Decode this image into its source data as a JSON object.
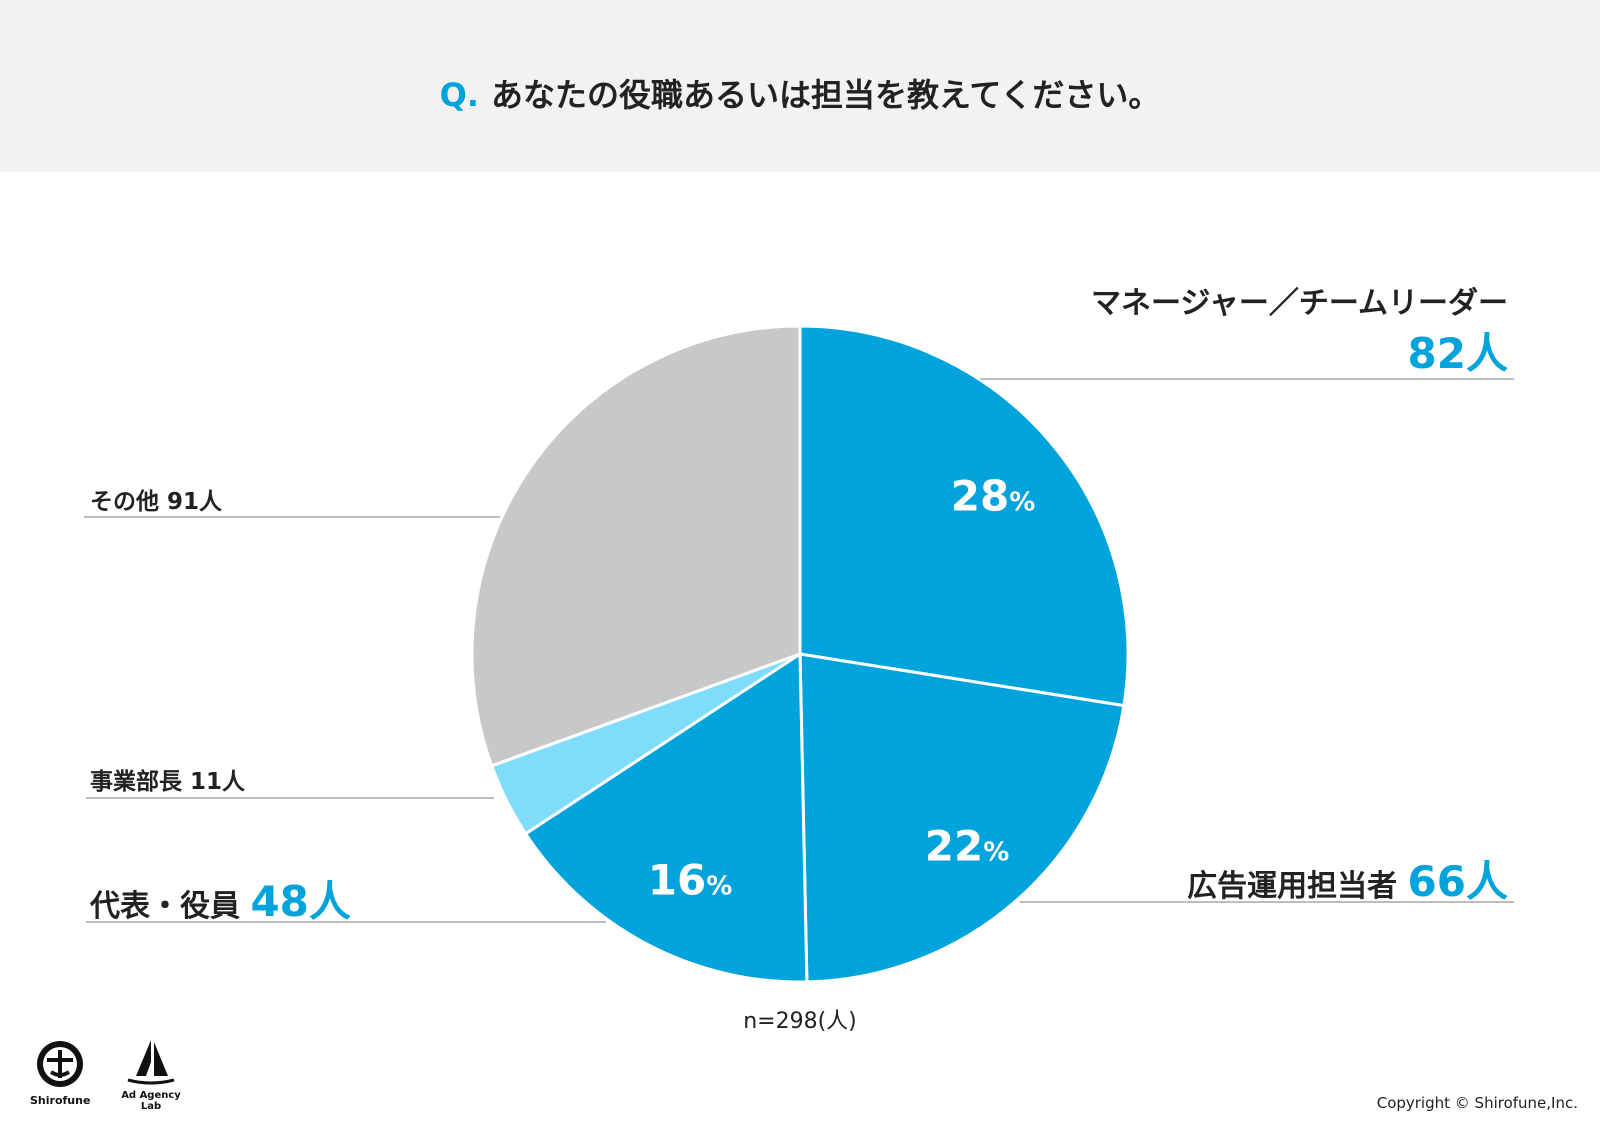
{
  "header": {
    "q_prefix": "Q.",
    "question": "あなたの役職あるいは担当を教えてください。"
  },
  "chart_data": {
    "type": "pie",
    "n_label": "n=298(人)",
    "slices": [
      {
        "label": "マネージャー／チームリーダー",
        "value": 82,
        "unit": "人",
        "percent": "28",
        "color": "#00a3dc"
      },
      {
        "label": "広告運用担当者",
        "value": 66,
        "unit": "人",
        "percent": "22",
        "color": "#00a3dc"
      },
      {
        "label": "代表・役員",
        "value": 48,
        "unit": "人",
        "percent": "16",
        "color": "#00a3dc"
      },
      {
        "label": "事業部長",
        "value": 11,
        "unit": "人",
        "percent": "",
        "color": "#7fdcfb"
      },
      {
        "label": "その他",
        "value": 91,
        "unit": "人",
        "percent": "",
        "color": "#c8c8c8"
      }
    ],
    "percent_unit": "%"
  },
  "labels": {
    "manager_name": "マネージャー／チームリーダー",
    "manager_count": "82人",
    "ad_ops_name": "広告運用担当者",
    "ad_ops_count": "66人",
    "exec_name": "代表・役員",
    "exec_count": "48人",
    "division_head": "事業部長 11人",
    "other": "その他 91人"
  },
  "footer": {
    "logo1": "Shirofune",
    "logo2": "Ad Agency Lab",
    "copyright": "Copyright © Shirofune,Inc."
  }
}
